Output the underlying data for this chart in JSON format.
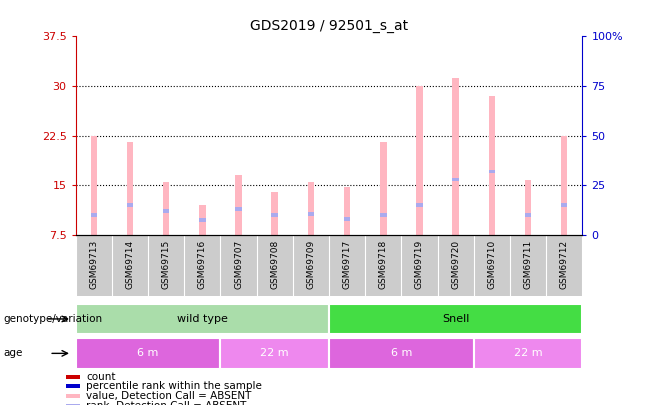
{
  "title": "GDS2019 / 92501_s_at",
  "samples": [
    "GSM69713",
    "GSM69714",
    "GSM69715",
    "GSM69716",
    "GSM69707",
    "GSM69708",
    "GSM69709",
    "GSM69717",
    "GSM69718",
    "GSM69719",
    "GSM69720",
    "GSM69710",
    "GSM69711",
    "GSM69712"
  ],
  "pink_bar_values": [
    22.5,
    21.5,
    15.5,
    12.0,
    16.5,
    14.0,
    15.5,
    14.8,
    21.5,
    30.0,
    31.2,
    28.5,
    15.8,
    22.5
  ],
  "blue_rank_pct": [
    10.0,
    15.0,
    12.0,
    7.5,
    13.0,
    10.0,
    10.5,
    8.0,
    10.0,
    15.0,
    28.0,
    32.0,
    10.0,
    15.0
  ],
  "ylim_left": [
    7.5,
    37.5
  ],
  "ylim_right": [
    0,
    100
  ],
  "yticks_left": [
    7.5,
    15.0,
    22.5,
    30.0,
    37.5
  ],
  "yticks_right": [
    0,
    25,
    50,
    75,
    100
  ],
  "ytick_labels_left": [
    "7.5",
    "15",
    "22.5",
    "30",
    "37.5"
  ],
  "ytick_labels_right": [
    "0",
    "25",
    "50",
    "75",
    "100%"
  ],
  "genotype_groups": [
    {
      "label": "wild type",
      "start": 0,
      "end": 7,
      "color": "#AADDAA"
    },
    {
      "label": "Snell",
      "start": 7,
      "end": 14,
      "color": "#44DD44"
    }
  ],
  "age_groups": [
    {
      "label": "6 m",
      "start": 0,
      "end": 4,
      "color": "#DD66DD"
    },
    {
      "label": "22 m",
      "start": 4,
      "end": 7,
      "color": "#EE88EE"
    },
    {
      "label": "6 m",
      "start": 7,
      "end": 11,
      "color": "#DD66DD"
    },
    {
      "label": "22 m",
      "start": 11,
      "end": 14,
      "color": "#EE88EE"
    }
  ],
  "left_axis_color": "#CC0000",
  "right_axis_color": "#0000CC",
  "pink_bar_color": "#FFB6C1",
  "blue_dot_color": "#AAAAEE",
  "bar_width": 0.18,
  "xticklabel_bg": "#CCCCCC",
  "grid_yticks": [
    15.0,
    22.5,
    30.0
  ],
  "legend_items": [
    {
      "label": "count",
      "color": "#CC0000"
    },
    {
      "label": "percentile rank within the sample",
      "color": "#0000CC"
    },
    {
      "label": "value, Detection Call = ABSENT",
      "color": "#FFB6C1"
    },
    {
      "label": "rank, Detection Call = ABSENT",
      "color": "#AAAAEE"
    }
  ]
}
